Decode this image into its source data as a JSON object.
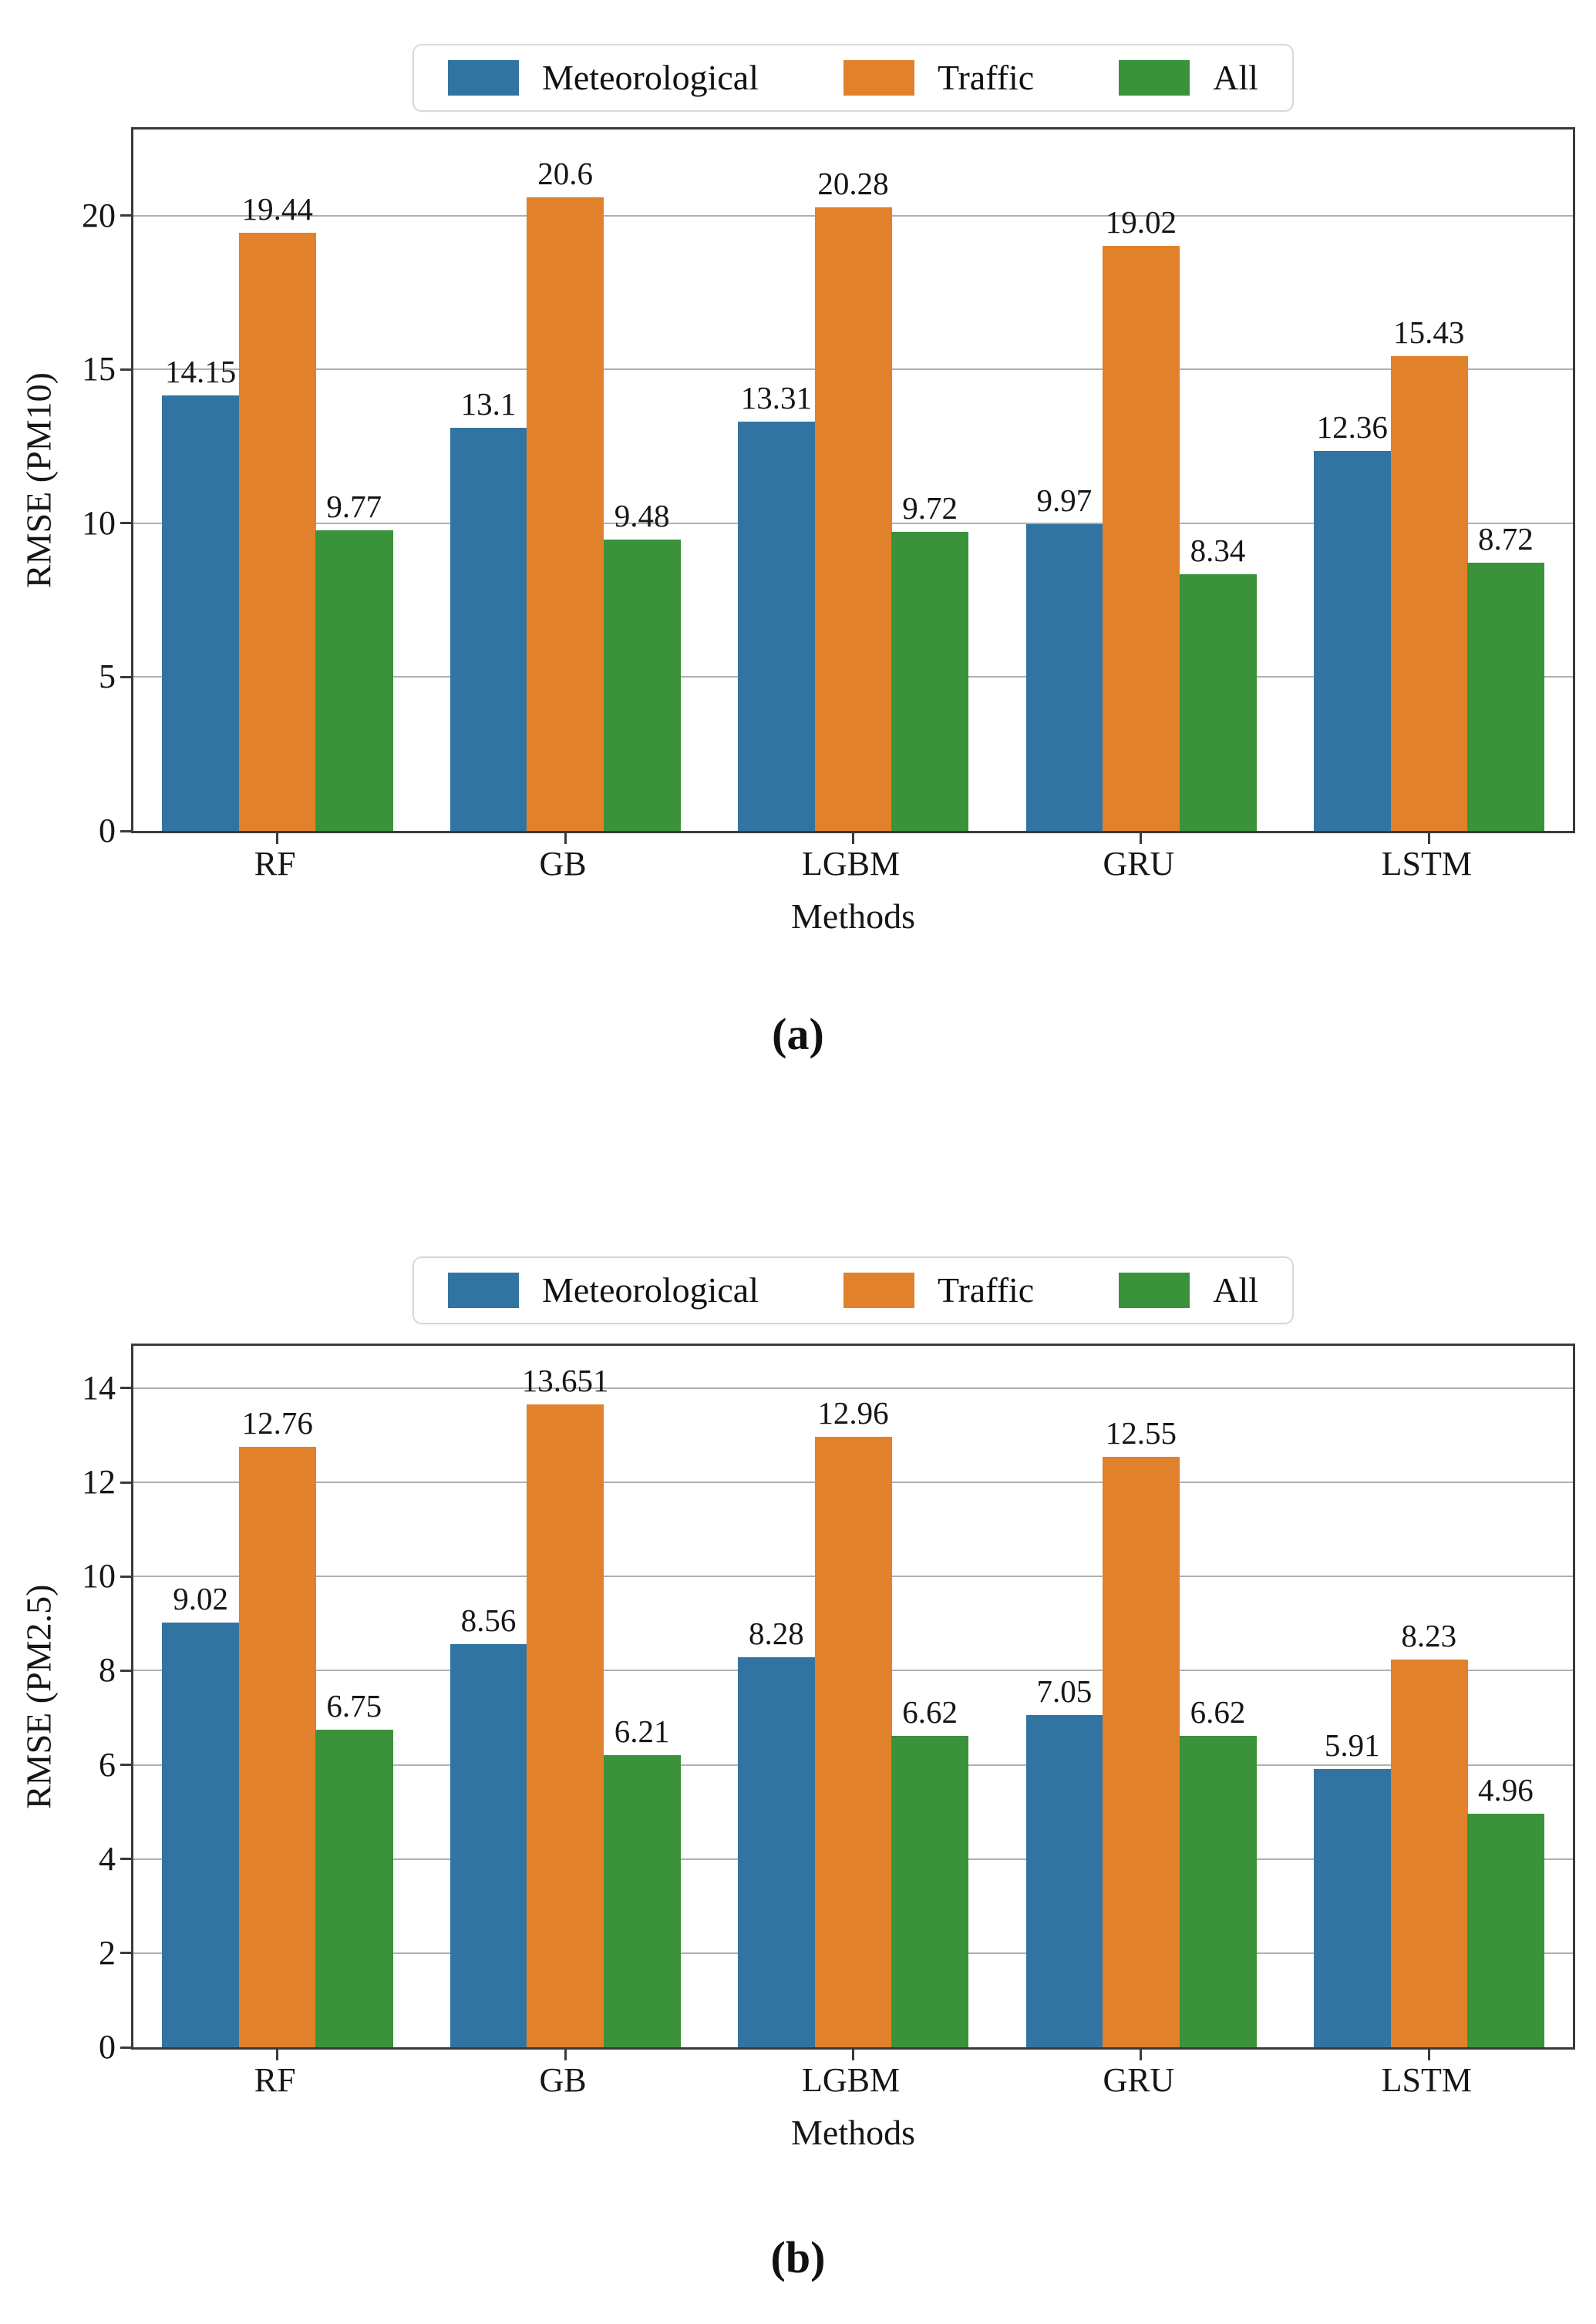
{
  "style_colors": {
    "meteorological_blue": "#3274A1",
    "traffic_orange": "#E1812C",
    "all_green": "#3A923A",
    "gridline_gray": "#B0B0B0",
    "spine_dark": "#3A3A3A",
    "text_black": "#161616"
  },
  "chart_data": [
    {
      "id": "a",
      "type": "bar",
      "caption": "(a)",
      "xlabel": "Methods",
      "ylabel": "RMSE (PM10)",
      "categories": [
        "RF",
        "GB",
        "LGBM",
        "GRU",
        "LSTM"
      ],
      "series": [
        {
          "name": "Meteorological",
          "color": "#3274A1",
          "values": [
            14.15,
            13.1,
            13.31,
            9.97,
            12.36
          ]
        },
        {
          "name": "Traffic",
          "color": "#E1812C",
          "values": [
            19.44,
            20.6,
            20.28,
            19.02,
            15.43
          ]
        },
        {
          "name": "All",
          "color": "#3A923A",
          "values": [
            9.77,
            9.48,
            9.72,
            8.34,
            8.72
          ]
        }
      ],
      "bar_value_labels": [
        [
          "14.15",
          "13.1",
          "13.31",
          "9.97",
          "12.36"
        ],
        [
          "19.44",
          "20.6",
          "20.28",
          "19.02",
          "15.43"
        ],
        [
          "9.77",
          "9.48",
          "9.72",
          "8.34",
          "8.72"
        ]
      ],
      "yticks": [
        0,
        5,
        10,
        15,
        20
      ],
      "ylim": [
        0,
        22.8
      ],
      "grid": true,
      "legend_position": "top-center",
      "legend_labels": [
        "Meteorological",
        "Traffic",
        "All"
      ]
    },
    {
      "id": "b",
      "type": "bar",
      "caption": "(b)",
      "xlabel": "Methods",
      "ylabel": "RMSE (PM2.5)",
      "categories": [
        "RF",
        "GB",
        "LGBM",
        "GRU",
        "LSTM"
      ],
      "series": [
        {
          "name": "Meteorological",
          "color": "#3274A1",
          "values": [
            9.02,
            8.56,
            8.28,
            7.05,
            5.91
          ]
        },
        {
          "name": "Traffic",
          "color": "#E1812C",
          "values": [
            12.76,
            13.651,
            12.96,
            12.55,
            8.23
          ]
        },
        {
          "name": "All",
          "color": "#3A923A",
          "values": [
            6.75,
            6.21,
            6.62,
            6.62,
            4.96
          ]
        }
      ],
      "bar_value_labels": [
        [
          "9.02",
          "8.56",
          "8.28",
          "7.05",
          "5.91"
        ],
        [
          "12.76",
          "13.651",
          "12.96",
          "12.55",
          "8.23"
        ],
        [
          "6.75",
          "6.21",
          "6.62",
          "6.62",
          "4.96"
        ]
      ],
      "yticks": [
        0,
        2,
        4,
        6,
        8,
        10,
        12,
        14
      ],
      "ylim": [
        0,
        14.9
      ],
      "grid": true,
      "legend_position": "top-center",
      "legend_labels": [
        "Meteorological",
        "Traffic",
        "All"
      ]
    }
  ]
}
